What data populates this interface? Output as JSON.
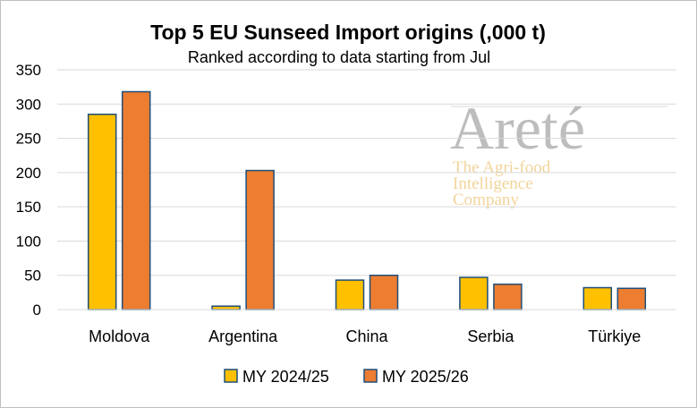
{
  "chart_data": {
    "type": "bar",
    "title": "Top 5 EU Sunseed Import origins (,000 t)",
    "subtitle": "Ranked according to data starting from Jul",
    "categories": [
      "Moldova",
      "Argentina",
      "China",
      "Serbia",
      "Türkiye"
    ],
    "series": [
      {
        "name": "MY 2024/25",
        "color": "#FFC000",
        "values": [
          285,
          5,
          43,
          47,
          32
        ]
      },
      {
        "name": "MY 2025/26",
        "color": "#ED7D31",
        "values": [
          318,
          203,
          50,
          37,
          31
        ]
      }
    ],
    "bar_outline_color": "#1F4E79",
    "ylim": [
      0,
      350
    ],
    "yticks": [
      0,
      50,
      100,
      150,
      200,
      250,
      300,
      350
    ],
    "grid": true,
    "legend": "bottom"
  },
  "watermark": {
    "logo_text": "Areté",
    "tagline": [
      "The Agri-food",
      "Intelligence",
      "Company"
    ]
  }
}
